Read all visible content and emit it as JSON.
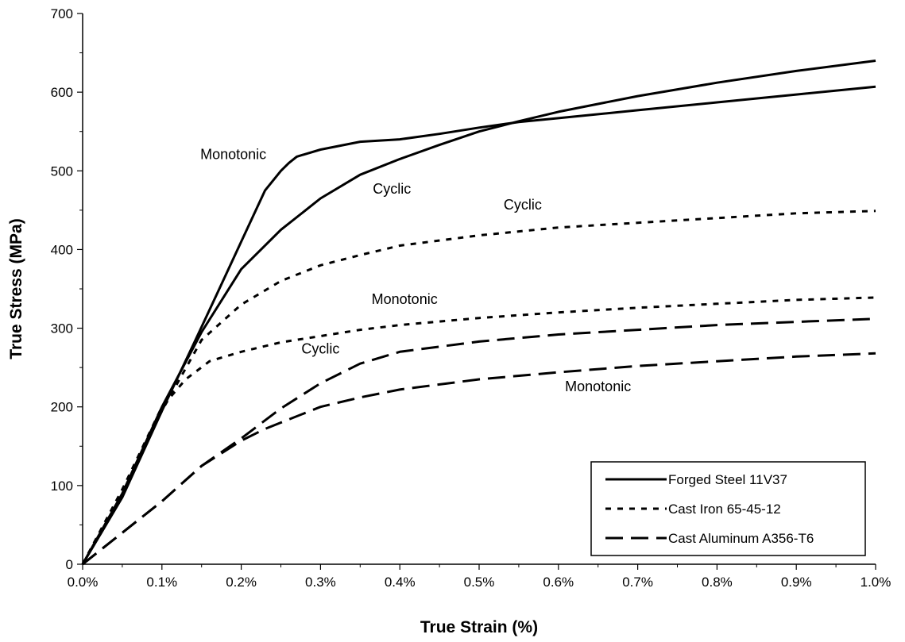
{
  "chart_data": {
    "type": "line",
    "xlabel": "True Strain  (%)",
    "ylabel": "True Stress (MPa)",
    "xlim": [
      0,
      1.0
    ],
    "ylim": [
      0,
      700
    ],
    "x_ticks": [
      0,
      0.1,
      0.2,
      0.3,
      0.4,
      0.5,
      0.6,
      0.7,
      0.8,
      0.9,
      1.0
    ],
    "x_tick_labels": [
      "0.0%",
      "0.1%",
      "0.2%",
      "0.3%",
      "0.4%",
      "0.5%",
      "0.6%",
      "0.7%",
      "0.8%",
      "0.9%",
      "1.0%"
    ],
    "y_ticks": [
      0,
      100,
      200,
      300,
      400,
      500,
      600,
      700
    ],
    "y_tick_labels": [
      "0",
      "100",
      "200",
      "300",
      "400",
      "500",
      "600",
      "700"
    ],
    "grid": false,
    "legend_position": "bottom-right",
    "legend": [
      {
        "label": "Forged Steel 11V37",
        "style": "solid"
      },
      {
        "label": "Cast Iron 65-45-12",
        "style": "dotted"
      },
      {
        "label": "Cast Aluminum A356-T6",
        "style": "dashed"
      }
    ],
    "series": [
      {
        "material": "Forged Steel 11V37",
        "curve": "Monotonic",
        "style": "solid",
        "color": "#000000",
        "points": [
          [
            0,
            0
          ],
          [
            0.05,
            85
          ],
          [
            0.1,
            195
          ],
          [
            0.14,
            280
          ],
          [
            0.17,
            345
          ],
          [
            0.2,
            410
          ],
          [
            0.23,
            475
          ],
          [
            0.25,
            500
          ],
          [
            0.26,
            510
          ],
          [
            0.27,
            518
          ],
          [
            0.3,
            527
          ],
          [
            0.35,
            537
          ],
          [
            0.4,
            540
          ],
          [
            0.45,
            547
          ],
          [
            0.5,
            555
          ],
          [
            0.55,
            562
          ],
          [
            0.6,
            567
          ],
          [
            0.7,
            577
          ],
          [
            0.8,
            587
          ],
          [
            0.9,
            597
          ],
          [
            1.0,
            607
          ]
        ]
      },
      {
        "material": "Forged Steel 11V37",
        "curve": "Cyclic",
        "style": "solid",
        "color": "#000000",
        "points": [
          [
            0,
            0
          ],
          [
            0.05,
            90
          ],
          [
            0.1,
            200
          ],
          [
            0.15,
            295
          ],
          [
            0.2,
            375
          ],
          [
            0.25,
            425
          ],
          [
            0.3,
            465
          ],
          [
            0.35,
            495
          ],
          [
            0.4,
            515
          ],
          [
            0.45,
            533
          ],
          [
            0.5,
            550
          ],
          [
            0.55,
            563
          ],
          [
            0.6,
            575
          ],
          [
            0.7,
            595
          ],
          [
            0.8,
            612
          ],
          [
            0.9,
            627
          ],
          [
            1.0,
            640
          ]
        ]
      },
      {
        "material": "Cast Iron 65-45-12",
        "curve": "Cyclic",
        "style": "dotted",
        "color": "#000000",
        "points": [
          [
            0,
            0
          ],
          [
            0.05,
            95
          ],
          [
            0.1,
            195
          ],
          [
            0.15,
            285
          ],
          [
            0.2,
            330
          ],
          [
            0.25,
            360
          ],
          [
            0.3,
            380
          ],
          [
            0.35,
            393
          ],
          [
            0.4,
            405
          ],
          [
            0.5,
            418
          ],
          [
            0.6,
            428
          ],
          [
            0.7,
            434
          ],
          [
            0.8,
            440
          ],
          [
            0.9,
            446
          ],
          [
            1.0,
            449
          ]
        ]
      },
      {
        "material": "Cast Iron 65-45-12",
        "curve": "Monotonic",
        "style": "dotted",
        "color": "#000000",
        "points": [
          [
            0,
            0
          ],
          [
            0.05,
            95
          ],
          [
            0.1,
            200
          ],
          [
            0.13,
            235
          ],
          [
            0.16,
            258
          ],
          [
            0.2,
            270
          ],
          [
            0.25,
            282
          ],
          [
            0.3,
            290
          ],
          [
            0.35,
            298
          ],
          [
            0.4,
            304
          ],
          [
            0.5,
            313
          ],
          [
            0.6,
            320
          ],
          [
            0.7,
            326
          ],
          [
            0.8,
            331
          ],
          [
            0.9,
            336
          ],
          [
            1.0,
            339
          ]
        ]
      },
      {
        "material": "Cast Aluminum A356-T6",
        "curve": "Cyclic",
        "style": "dashed",
        "color": "#000000",
        "points": [
          [
            0,
            0
          ],
          [
            0.05,
            40
          ],
          [
            0.1,
            80
          ],
          [
            0.15,
            125
          ],
          [
            0.2,
            160
          ],
          [
            0.25,
            198
          ],
          [
            0.3,
            230
          ],
          [
            0.35,
            255
          ],
          [
            0.4,
            270
          ],
          [
            0.5,
            283
          ],
          [
            0.6,
            292
          ],
          [
            0.7,
            298
          ],
          [
            0.8,
            304
          ],
          [
            0.9,
            308
          ],
          [
            1.0,
            312
          ]
        ]
      },
      {
        "material": "Cast Aluminum A356-T6",
        "curve": "Monotonic",
        "style": "dashed",
        "color": "#000000",
        "points": [
          [
            0,
            0
          ],
          [
            0.05,
            40
          ],
          [
            0.1,
            80
          ],
          [
            0.15,
            125
          ],
          [
            0.2,
            157
          ],
          [
            0.23,
            172
          ],
          [
            0.25,
            180
          ],
          [
            0.3,
            200
          ],
          [
            0.35,
            212
          ],
          [
            0.4,
            222
          ],
          [
            0.5,
            235
          ],
          [
            0.6,
            244
          ],
          [
            0.7,
            252
          ],
          [
            0.8,
            258
          ],
          [
            0.9,
            264
          ],
          [
            1.0,
            268
          ]
        ]
      }
    ],
    "annotations": [
      {
        "text": "Monotonic",
        "x": 0.19,
        "y": 515
      },
      {
        "text": "Cyclic",
        "x": 0.39,
        "y": 471
      },
      {
        "text": "Cyclic",
        "x": 0.555,
        "y": 451
      },
      {
        "text": "Monotonic",
        "x": 0.406,
        "y": 331
      },
      {
        "text": "Cyclic",
        "x": 0.3,
        "y": 268
      },
      {
        "text": "Monotonic",
        "x": 0.65,
        "y": 220
      }
    ]
  }
}
